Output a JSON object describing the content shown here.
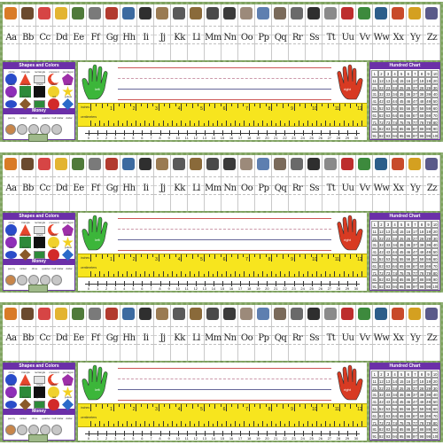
{
  "alphabet": [
    "Aa",
    "Bb",
    "Cc",
    "Dd",
    "Ee",
    "Ff",
    "Gg",
    "Hh",
    "Ii",
    "Jj",
    "Kk",
    "Ll",
    "Mm",
    "Nn",
    "Oo",
    "Pp",
    "Qq",
    "Rr",
    "Ss",
    "Tt",
    "Uu",
    "Vv",
    "Ww",
    "Xx",
    "Yy",
    "Zz"
  ],
  "picture_colors": [
    "#d97b27",
    "#6b4a2e",
    "#d64545",
    "#e3b431",
    "#4f7a3a",
    "#7a7a7a",
    "#b23a2e",
    "#3c6aa0",
    "#2f2f2f",
    "#9a7b52",
    "#5a5a5a",
    "#8a6a3a",
    "#4a4a4a",
    "#3a3a3a",
    "#9c8a7a",
    "#5e7fb0",
    "#7a6a5a",
    "#6a6a6a",
    "#2e2e2e",
    "#8a8a8a",
    "#bd2d2d",
    "#3d8a3d",
    "#2c5e8a",
    "#c84a2a",
    "#d4a020",
    "#5a5a8a"
  ],
  "shapes_colors": {
    "title": "Shapes and Colors",
    "items": [
      {
        "label": "circle",
        "shape": "circle",
        "color": "#2a4cc9"
      },
      {
        "label": "triangle",
        "shape": "triangle",
        "color": "#e8462c"
      },
      {
        "label": "rectangle",
        "shape": "rect",
        "color": "#e5e5e5"
      },
      {
        "label": "crescent",
        "shape": "crescent",
        "color": "#e8462c"
      },
      {
        "label": "pentagon",
        "shape": "pentagon",
        "color": "#9e2fa8"
      },
      {
        "label": "purple",
        "shape": "circle",
        "color": "#8e2fb8"
      },
      {
        "label": "orange",
        "shape": "square",
        "color": "#2d8a3a"
      },
      {
        "label": "black",
        "shape": "square",
        "color": "#111111"
      },
      {
        "label": "white",
        "shape": "circle",
        "color": "#f0d12c"
      },
      {
        "label": "star",
        "shape": "star",
        "color": "#f2d024"
      },
      {
        "label": "blue",
        "shape": "oval",
        "color": "#2a4cc9"
      },
      {
        "label": "brown",
        "shape": "diamond",
        "color": "#8a5a2a"
      },
      {
        "label": "green",
        "shape": "rect",
        "color": "#2d8a3a"
      },
      {
        "label": "red",
        "shape": "circle",
        "color": "#d22a2a"
      },
      {
        "label": "yellow",
        "shape": "diamond",
        "color": "#2a6ac9"
      }
    ]
  },
  "money": {
    "title": "Money",
    "coins": [
      "penny",
      "nickel",
      "dime",
      "quarter",
      "half dollar",
      "dollar"
    ]
  },
  "hands": {
    "left": "left",
    "right": "right"
  },
  "ruler": {
    "inch_label": "inches",
    "cm_label": "centimeters",
    "inches": [
      1,
      2,
      3,
      4,
      5,
      6,
      7,
      8,
      9,
      10,
      11,
      12
    ]
  },
  "number_line": {
    "start": 0,
    "end": 30
  },
  "hundred_chart": {
    "title": "Hundred Chart",
    "start": 1,
    "end": 100
  },
  "colors": {
    "purple_header": "#6b2fa8",
    "ruler_yellow": "#f7e51e",
    "hand_left": "#3cb63a",
    "hand_right": "#d83a22",
    "grass": "#7fa35f"
  }
}
